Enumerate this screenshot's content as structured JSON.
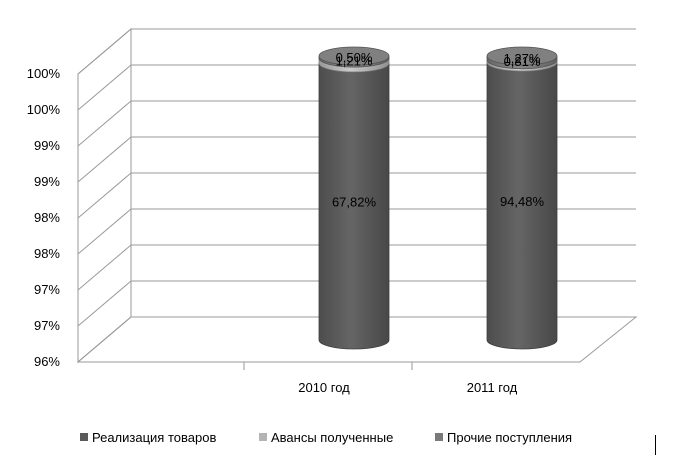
{
  "chart_data": {
    "type": "bar",
    "stacked": true,
    "style": "3d-cylinder",
    "categories": [
      "2010 год",
      "2011 год"
    ],
    "series": [
      {
        "name": "Реализация товаров",
        "color": "#5a5a5a",
        "values": [
          67.82,
          94.48
        ],
        "labels": [
          "67,82%",
          "94,48%"
        ]
      },
      {
        "name": "Авансы полученные",
        "color": "#b4b4b4",
        "values": [
          1.21,
          0.81
        ],
        "labels": [
          "1,21%",
          "0,81%"
        ]
      },
      {
        "name": "Прочие поступления",
        "color": "#7a7a7a",
        "values": [
          0.5,
          1.27
        ],
        "labels": [
          "0,50%",
          "1,27%"
        ]
      }
    ],
    "y_tick_labels": [
      "96%",
      "97%",
      "97%",
      "98%",
      "98%",
      "99%",
      "99%",
      "100%",
      "100%"
    ],
    "grid": true,
    "legend_position": "bottom"
  }
}
